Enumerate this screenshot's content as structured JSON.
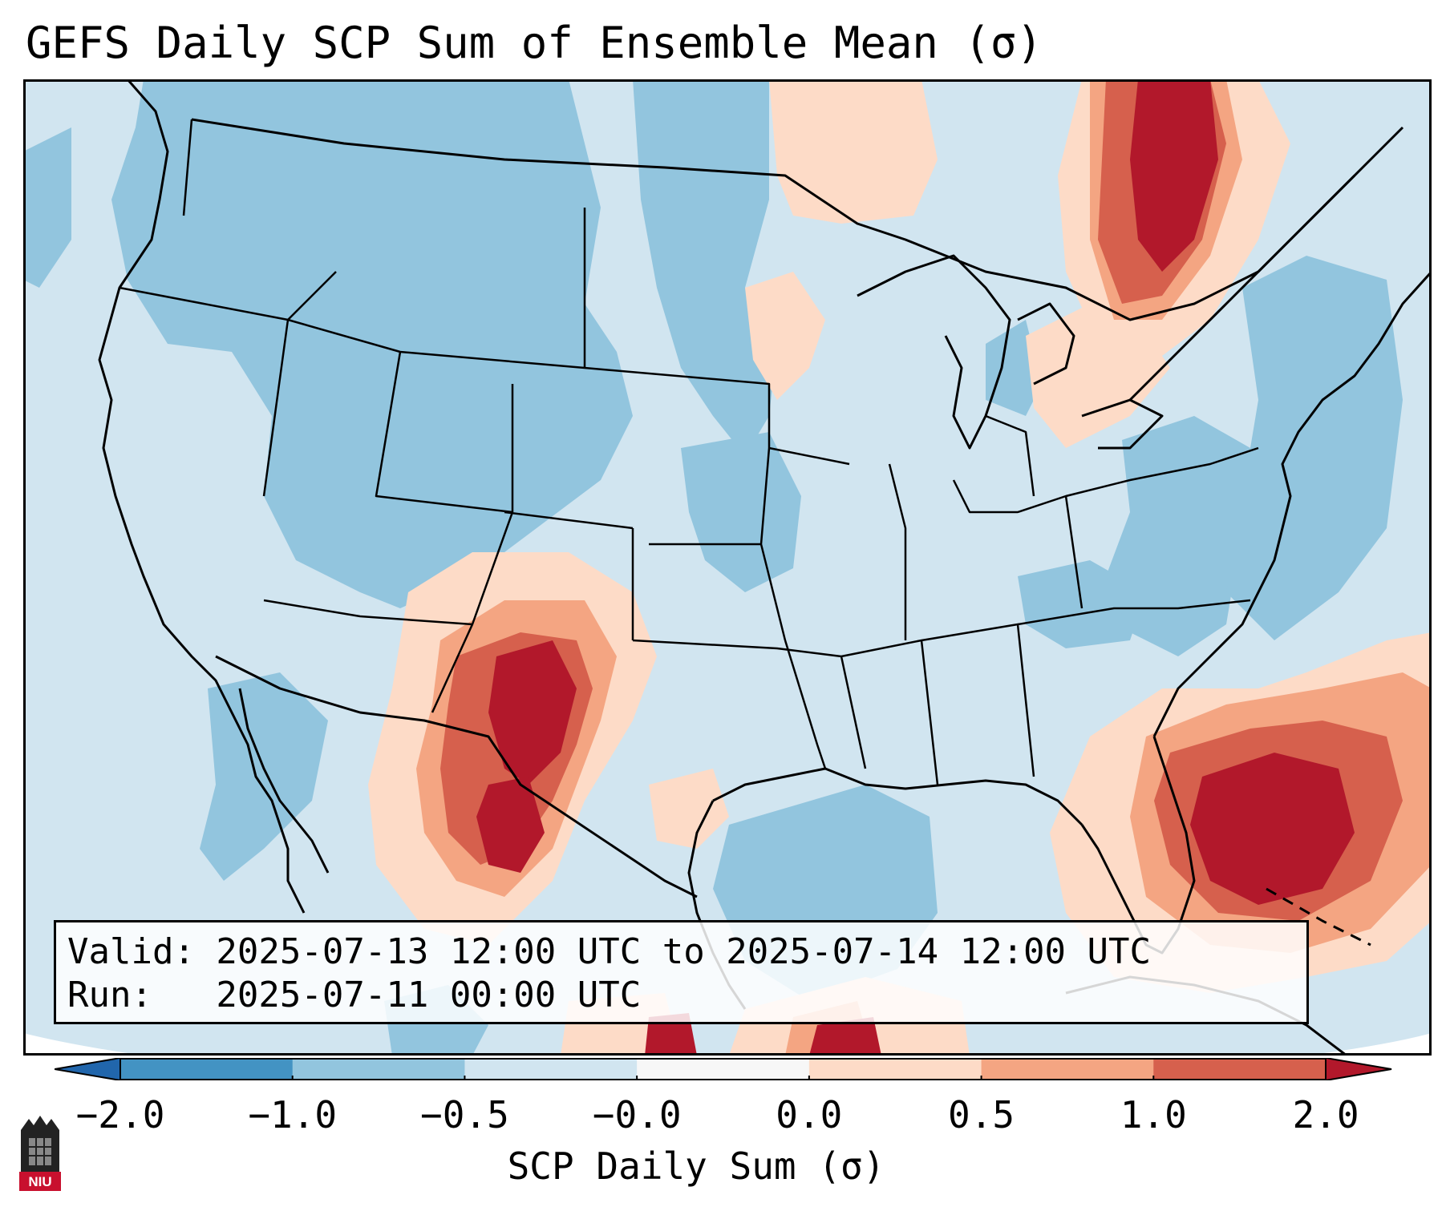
{
  "title": "GEFS Daily SCP Sum of Ensemble Mean (σ)",
  "info": {
    "valid": "Valid: 2025-07-13 12:00 UTC to 2025-07-14 12:00 UTC",
    "run": "Run:   2025-07-11 00:00 UTC"
  },
  "colorbar": {
    "label": "SCP Daily Sum (σ)",
    "ticks": [
      "−2.0",
      "−1.0",
      "−0.5",
      "−0.0",
      "0.0",
      "0.5",
      "1.0",
      "2.0"
    ],
    "bins": [
      {
        "from": -2.0,
        "to": -1.0,
        "color": "#4393c3"
      },
      {
        "from": -1.0,
        "to": -0.5,
        "color": "#92c5de"
      },
      {
        "from": -0.5,
        "to": -0.0,
        "color": "#d1e5f0"
      },
      {
        "from": -0.0,
        "to": 0.0,
        "color": "#f7f7f7"
      },
      {
        "from": 0.0,
        "to": 0.5,
        "color": "#fddbc7"
      },
      {
        "from": 0.5,
        "to": 1.0,
        "color": "#f4a582"
      },
      {
        "from": 1.0,
        "to": 2.0,
        "color": "#d6604d"
      }
    ],
    "under_color": "#2166ac",
    "over_color": "#b2182b",
    "extend": "both"
  },
  "anomaly_regions": [
    {
      "region": "Quebec / Ontario",
      "level": "max",
      "value_sigma": 2.0
    },
    {
      "region": "New Mexico / West Texas",
      "level": "max",
      "value_sigma": 2.0
    },
    {
      "region": "Florida / Bahamas",
      "level": "max",
      "value_sigma": 2.0
    },
    {
      "region": "Northern Mexico",
      "level": "high",
      "value_sigma": 1.5
    },
    {
      "region": "Great Lakes / Northern Plains",
      "level": "slight-positive",
      "value_sigma": 0.3
    },
    {
      "region": "Western US / Rockies",
      "level": "moderate-negative",
      "value_sigma": -0.7
    },
    {
      "region": "Gulf of Mexico",
      "level": "moderate-negative",
      "value_sigma": -0.7
    },
    {
      "region": "Eastern US",
      "level": "slight-negative",
      "value_sigma": -0.3
    }
  ],
  "logo": {
    "text": "NIU",
    "color": "#c8102e"
  }
}
